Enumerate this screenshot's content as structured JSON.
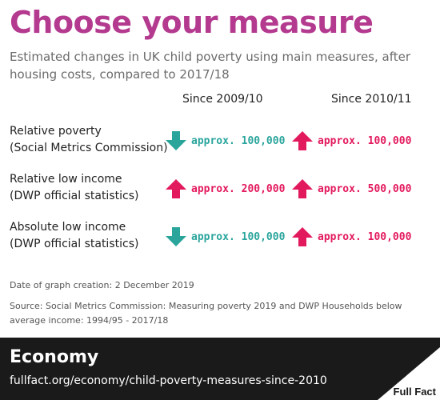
{
  "header": {
    "title": "Choose your measure",
    "subtitle": "Estimated changes in UK child poverty using main measures, after housing costs, compared to 2017/18"
  },
  "columns": [
    "Since 2009/10",
    "Since 2010/11"
  ],
  "rows": [
    {
      "label_line1": "Relative poverty",
      "label_line2": "(Social Metrics Commission)",
      "cells": [
        {
          "direction": "down",
          "text": "approx. 100,000"
        },
        {
          "direction": "up",
          "text": "approx. 100,000"
        }
      ]
    },
    {
      "label_line1": "Relative low income",
      "label_line2": "(DWP official statistics)",
      "cells": [
        {
          "direction": "up",
          "text": "approx. 200,000"
        },
        {
          "direction": "up",
          "text": "approx. 500,000"
        }
      ]
    },
    {
      "label_line1": "Absolute low income",
      "label_line2": "(DWP official statistics)",
      "cells": [
        {
          "direction": "down",
          "text": "approx. 100,000"
        },
        {
          "direction": "up",
          "text": "approx. 100,000"
        }
      ]
    }
  ],
  "notes": {
    "date": "Date of graph creation: 2 December 2019",
    "source": "Source: Social Metrics Commission: Measuring poverty 2019 and DWP Households below average income: 1994/95 - 2017/18"
  },
  "footer": {
    "section": "Economy",
    "link": "fullfact.org/economy/child-poverty-measures-since-2010",
    "logo_text": "Full Fact"
  },
  "colors": {
    "title": "#b33a8e",
    "down": "#2aa59c",
    "up": "#e3195e",
    "footer_bg": "#1a1a1a"
  },
  "chart_data": {
    "type": "table",
    "title": "Choose your measure",
    "subtitle": "Estimated changes in UK child poverty using main measures, after housing costs, compared to 2017/18",
    "columns": [
      "Since 2009/10",
      "Since 2010/11"
    ],
    "rows": [
      {
        "measure": "Relative poverty (Social Metrics Commission)",
        "values": [
          {
            "direction": "down",
            "text": "approx. 100,000"
          },
          {
            "direction": "up",
            "text": "approx. 100,000"
          }
        ]
      },
      {
        "measure": "Relative low income (DWP official statistics)",
        "values": [
          {
            "direction": "up",
            "text": "approx. 200,000"
          },
          {
            "direction": "up",
            "text": "approx. 500,000"
          }
        ]
      },
      {
        "measure": "Absolute low income (DWP official statistics)",
        "values": [
          {
            "direction": "down",
            "text": "approx. 100,000"
          },
          {
            "direction": "up",
            "text": "approx. 100,000"
          }
        ]
      }
    ]
  }
}
